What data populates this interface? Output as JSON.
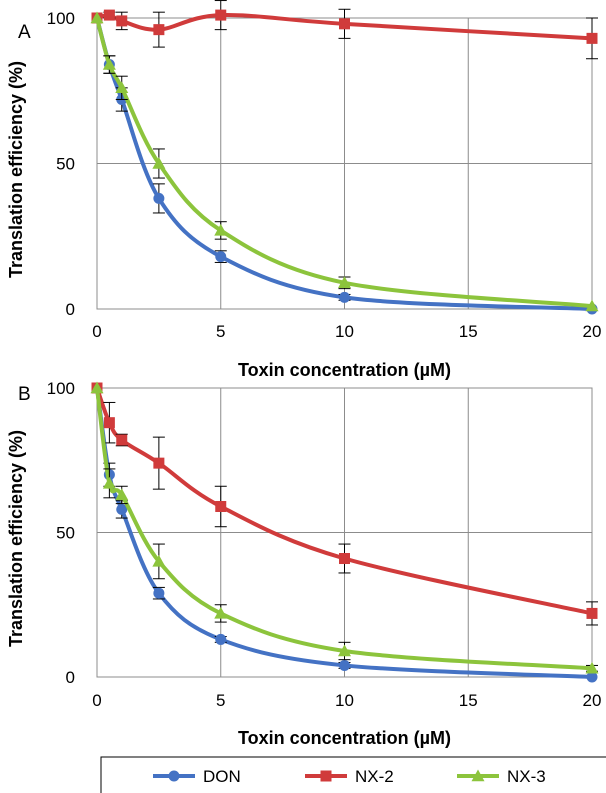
{
  "chart_data": [
    {
      "type": "line",
      "panel_label": "A",
      "xlabel": "Toxin concentration (µM)",
      "ylabel": "Translation efficiency (%)",
      "xlim": [
        0,
        20
      ],
      "ylim": [
        0,
        100
      ],
      "xticks": [
        0,
        5,
        10,
        15,
        20
      ],
      "yticks": [
        0,
        50,
        100
      ],
      "grid": true,
      "x": [
        0,
        0.5,
        1,
        2.5,
        5,
        10,
        20
      ],
      "series": [
        {
          "name": "DON",
          "color": "#4472C4",
          "marker": "circle",
          "values": [
            100,
            84,
            72,
            38,
            18,
            4,
            0
          ],
          "error": [
            0,
            3,
            4,
            5,
            2,
            1,
            0
          ]
        },
        {
          "name": "NX-2",
          "color": "#D03B3B",
          "marker": "square",
          "values": [
            100,
            101,
            99,
            96,
            101,
            98,
            93
          ],
          "error": [
            0,
            1,
            3,
            6,
            5,
            5,
            7
          ]
        },
        {
          "name": "NX-3",
          "color": "#8CC43C",
          "marker": "triangle",
          "values": [
            100,
            84,
            76,
            50,
            27,
            9,
            1
          ],
          "error": [
            0,
            3,
            4,
            5,
            3,
            2,
            0
          ]
        }
      ]
    },
    {
      "type": "line",
      "panel_label": "B",
      "xlabel": "Toxin concentration (µM)",
      "ylabel": "Translation efficiency (%)",
      "xlim": [
        0,
        20
      ],
      "ylim": [
        0,
        100
      ],
      "xticks": [
        0,
        5,
        10,
        15,
        20
      ],
      "yticks": [
        0,
        50,
        100
      ],
      "grid": true,
      "x": [
        0,
        0.5,
        1,
        2.5,
        5,
        10,
        20
      ],
      "series": [
        {
          "name": "DON",
          "color": "#4472C4",
          "marker": "circle",
          "values": [
            100,
            70,
            58,
            29,
            13,
            4,
            0
          ],
          "error": [
            0,
            4,
            3,
            2,
            1,
            1,
            0
          ]
        },
        {
          "name": "NX-2",
          "color": "#D03B3B",
          "marker": "square",
          "values": [
            100,
            88,
            82,
            74,
            59,
            41,
            22
          ],
          "error": [
            0,
            7,
            2,
            9,
            7,
            5,
            4
          ]
        },
        {
          "name": "NX-3",
          "color": "#8CC43C",
          "marker": "triangle",
          "values": [
            100,
            67,
            63,
            40,
            22,
            9,
            3
          ],
          "error": [
            0,
            5,
            3,
            6,
            3,
            3,
            1
          ]
        }
      ]
    }
  ],
  "legend": {
    "placement": "bottom",
    "entries": [
      "DON",
      "NX-2",
      "NX-3"
    ]
  }
}
